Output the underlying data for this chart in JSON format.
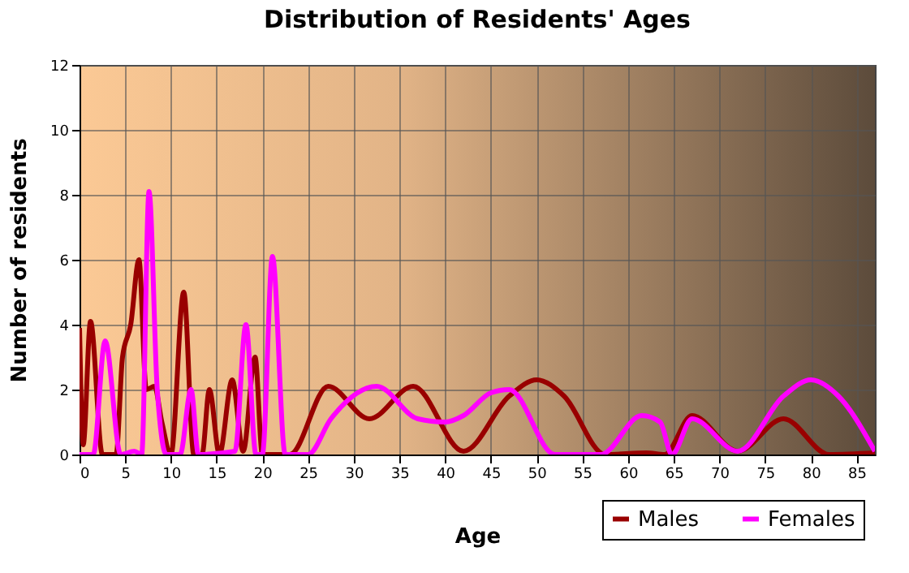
{
  "chart_data": {
    "type": "line",
    "title": "Distribution of Residents' Ages",
    "xlabel": "Age",
    "ylabel": "Number of residents",
    "xlim": [
      0,
      87
    ],
    "ylim": [
      0,
      12
    ],
    "xticks": [
      0,
      5,
      10,
      15,
      20,
      25,
      30,
      35,
      40,
      45,
      50,
      55,
      60,
      65,
      70,
      75,
      80,
      85
    ],
    "yticks": [
      0,
      2,
      4,
      6,
      8,
      10,
      12
    ],
    "grid": true,
    "legend": "bottom right",
    "series": [
      {
        "name": "Males",
        "color": "#990000",
        "x": [
          0,
          0.4,
          1.2,
          2.5,
          4,
          4.7,
          5.6,
          6.5,
          7.3,
          8.2,
          9,
          10,
          11.4,
          12.5,
          13.4,
          14.2,
          15.3,
          16.7,
          17.9,
          19.2,
          20,
          23,
          27.2,
          31.7,
          36.5,
          42,
          47,
          50,
          53,
          57.5,
          62,
          64,
          67,
          72,
          77,
          82,
          87
        ],
        "values": [
          3.9,
          0.3,
          4.1,
          0,
          0,
          3,
          4,
          6,
          2,
          2.1,
          1,
          0,
          5,
          0,
          0,
          2,
          0,
          2.3,
          0.1,
          3,
          0,
          0,
          2.1,
          1.1,
          2.1,
          0.1,
          1.8,
          2.3,
          1.8,
          0,
          0.05,
          0,
          1.2,
          0.1,
          1.1,
          0,
          0.05
        ]
      },
      {
        "name": "Females",
        "color": "#ff00ff",
        "x": [
          0,
          1.5,
          2.8,
          4.5,
          6,
          6.8,
          7.6,
          8.5,
          9.5,
          11,
          12.2,
          13,
          17,
          18.2,
          19.3,
          20,
          21.1,
          22.5,
          25,
          27.5,
          32.5,
          37,
          40,
          42,
          45,
          47,
          52,
          57,
          61.5,
          63.5,
          64.8,
          67,
          72,
          77,
          80,
          83,
          87
        ],
        "values": [
          0,
          0,
          3.5,
          0,
          0.1,
          0,
          8.1,
          2,
          0,
          0,
          2,
          0,
          0.1,
          4,
          0,
          0,
          6.1,
          0,
          0,
          1.1,
          2.1,
          1.1,
          1,
          1.2,
          1.9,
          2,
          0,
          0,
          1.2,
          1,
          0,
          1.1,
          0.1,
          1.8,
          2.3,
          1.8,
          0.1
        ]
      }
    ]
  }
}
